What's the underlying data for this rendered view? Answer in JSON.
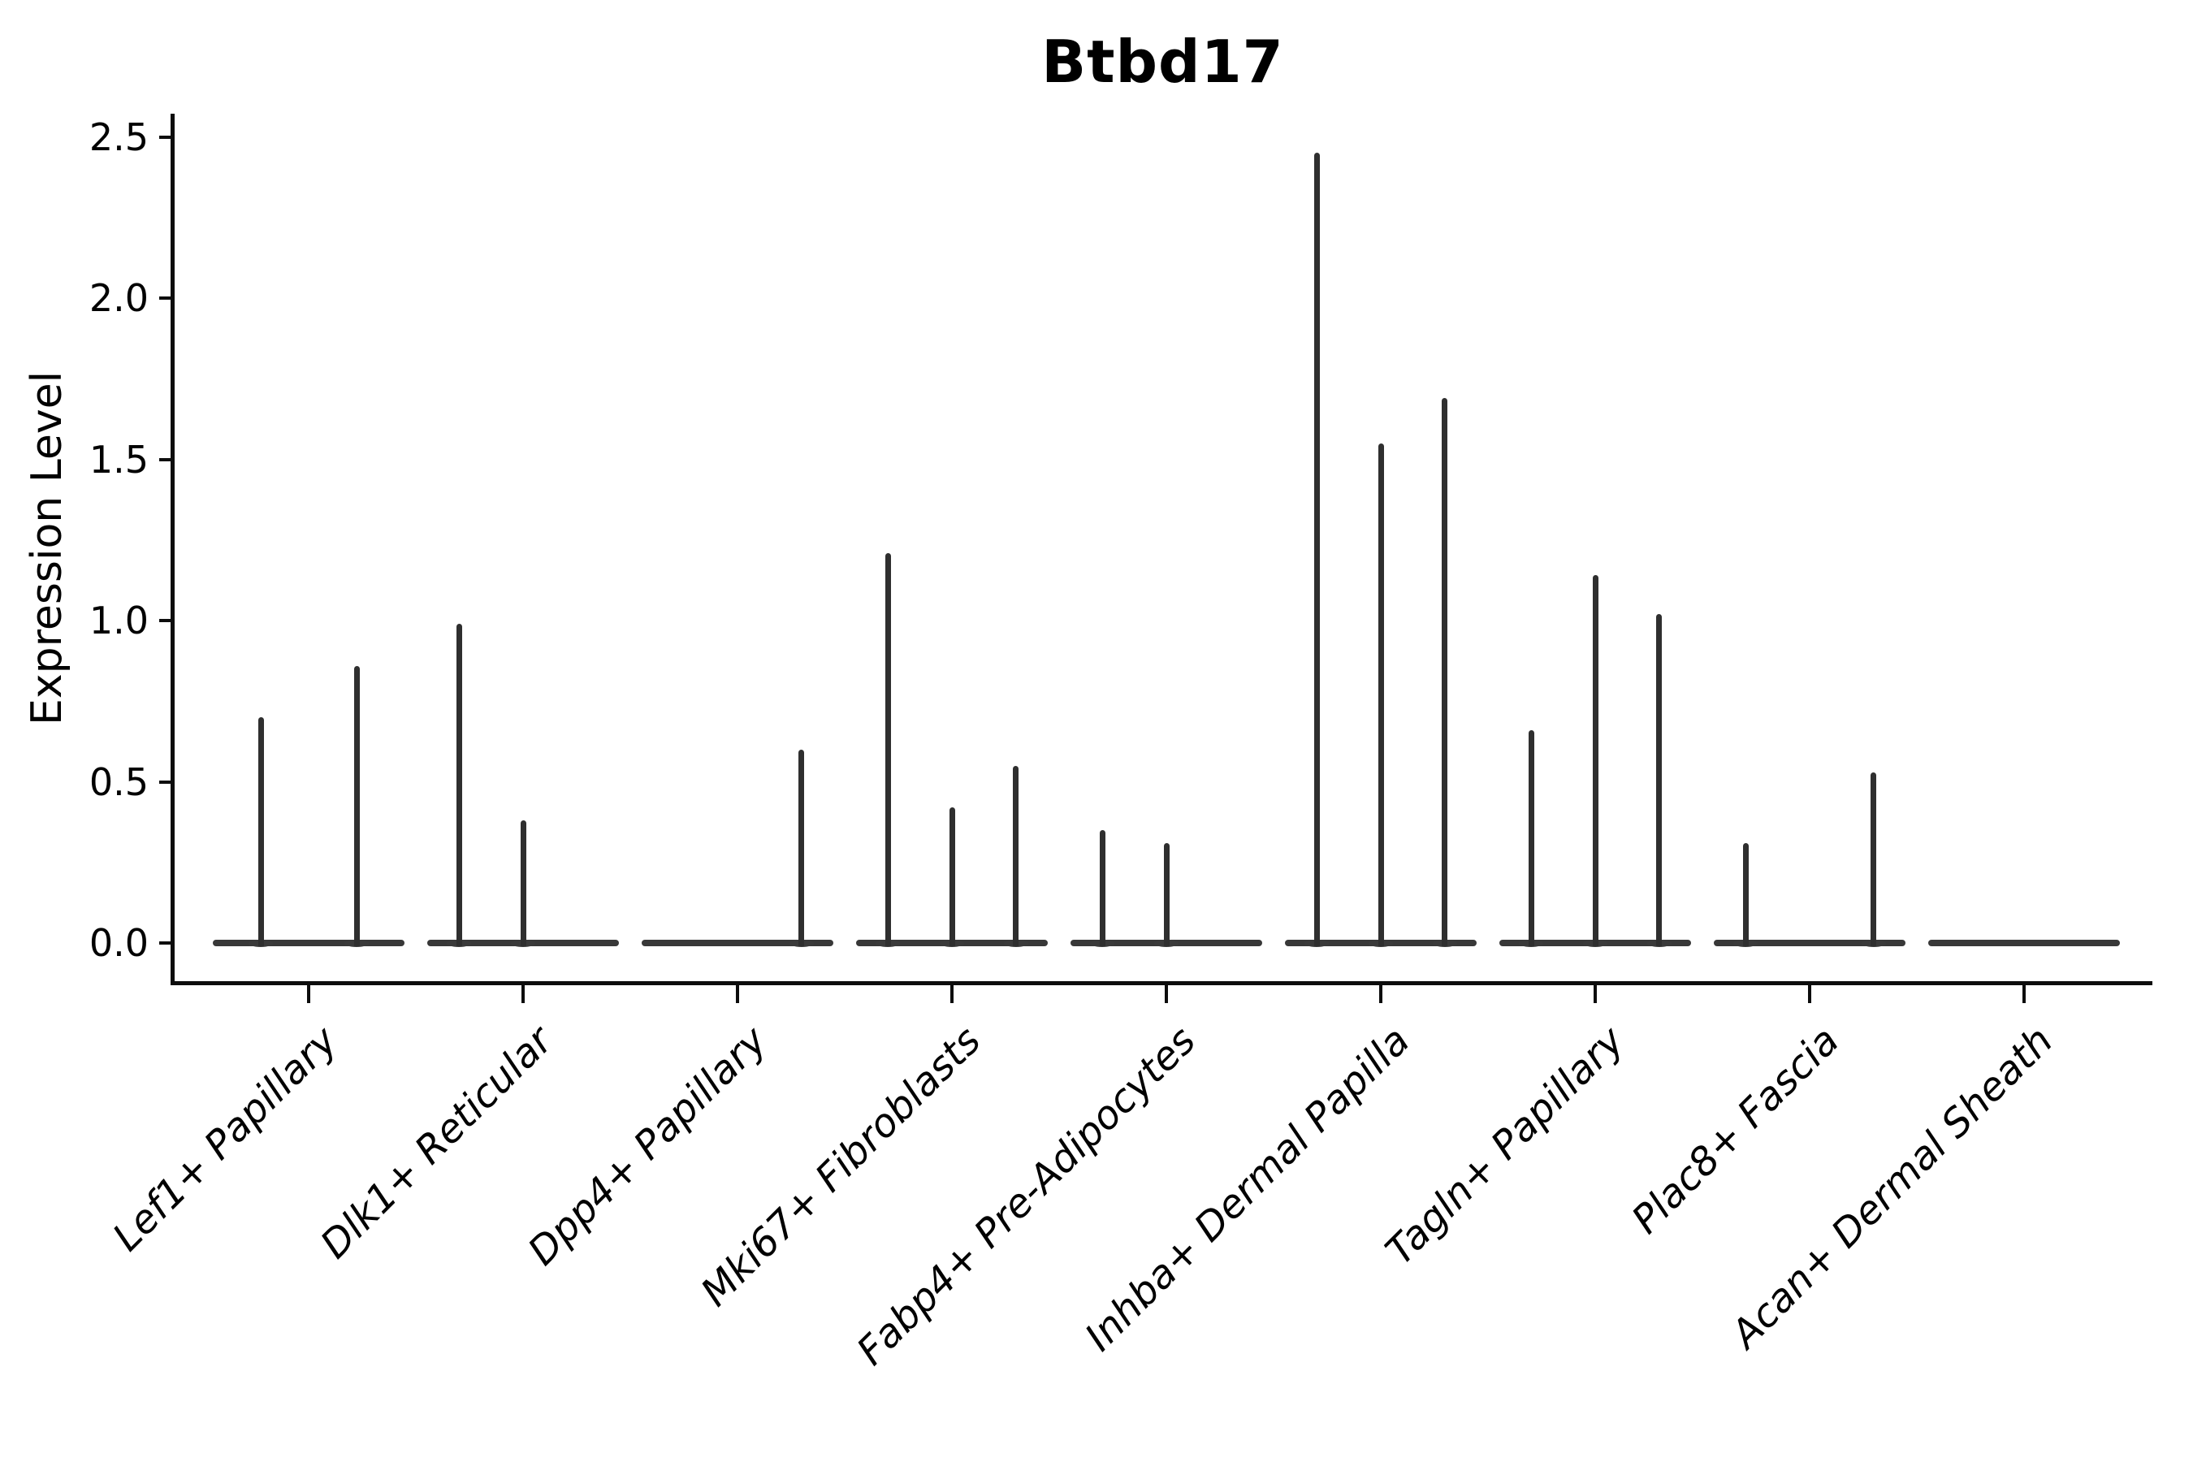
{
  "colors": {
    "violin_stroke": "#2f2f2f",
    "baseline": "#383838",
    "spine": "#0d0d0d",
    "text": "#000000",
    "background": "#ffffff"
  },
  "chart_data": {
    "type": "violin",
    "title": "Btbd17",
    "xlabel": "",
    "ylabel": "Expression Level",
    "ylim": [
      0,
      2.5
    ],
    "yticks": [
      0.0,
      0.5,
      1.0,
      1.5,
      2.0,
      2.5
    ],
    "ytick_labels": [
      "0.0",
      "0.5",
      "1.0",
      "1.5",
      "2.0",
      "2.5"
    ],
    "grid": false,
    "legend": "none",
    "baseline_value": 0.0,
    "categories": [
      {
        "label": "Lef1+ Papillary",
        "violins": [
          {
            "pos": 0.25,
            "max": 0.7
          },
          {
            "pos": 0.75,
            "max": 0.86
          }
        ]
      },
      {
        "label": "Dlk1+ Reticular",
        "violins": [
          {
            "pos": 0.167,
            "max": 0.99
          },
          {
            "pos": 0.5,
            "max": 0.38
          }
        ]
      },
      {
        "label": "Dpp4+ Papillary",
        "violins": [
          {
            "pos": 0.833,
            "max": 0.6
          }
        ]
      },
      {
        "label": "Mki67+ Fibroblasts",
        "violins": [
          {
            "pos": 0.167,
            "max": 1.21
          },
          {
            "pos": 0.5,
            "max": 0.42
          },
          {
            "pos": 0.833,
            "max": 0.55
          }
        ]
      },
      {
        "label": "Fabp4+ Pre-Adipocytes",
        "violins": [
          {
            "pos": 0.167,
            "max": 0.35
          },
          {
            "pos": 0.5,
            "max": 0.31
          }
        ]
      },
      {
        "label": "Inhba+ Dermal Papilla",
        "violins": [
          {
            "pos": 0.167,
            "max": 2.45
          },
          {
            "pos": 0.5,
            "max": 1.55
          },
          {
            "pos": 0.833,
            "max": 1.69
          }
        ]
      },
      {
        "label": "Tagln+ Papillary",
        "violins": [
          {
            "pos": 0.167,
            "max": 0.66
          },
          {
            "pos": 0.5,
            "max": 1.14
          },
          {
            "pos": 0.833,
            "max": 1.02
          }
        ]
      },
      {
        "label": "Plac8+ Fascia",
        "violins": [
          {
            "pos": 0.167,
            "max": 0.31
          },
          {
            "pos": 0.833,
            "max": 0.53
          }
        ]
      },
      {
        "label": "Acan+ Dermal Sheath",
        "violins": []
      }
    ]
  }
}
